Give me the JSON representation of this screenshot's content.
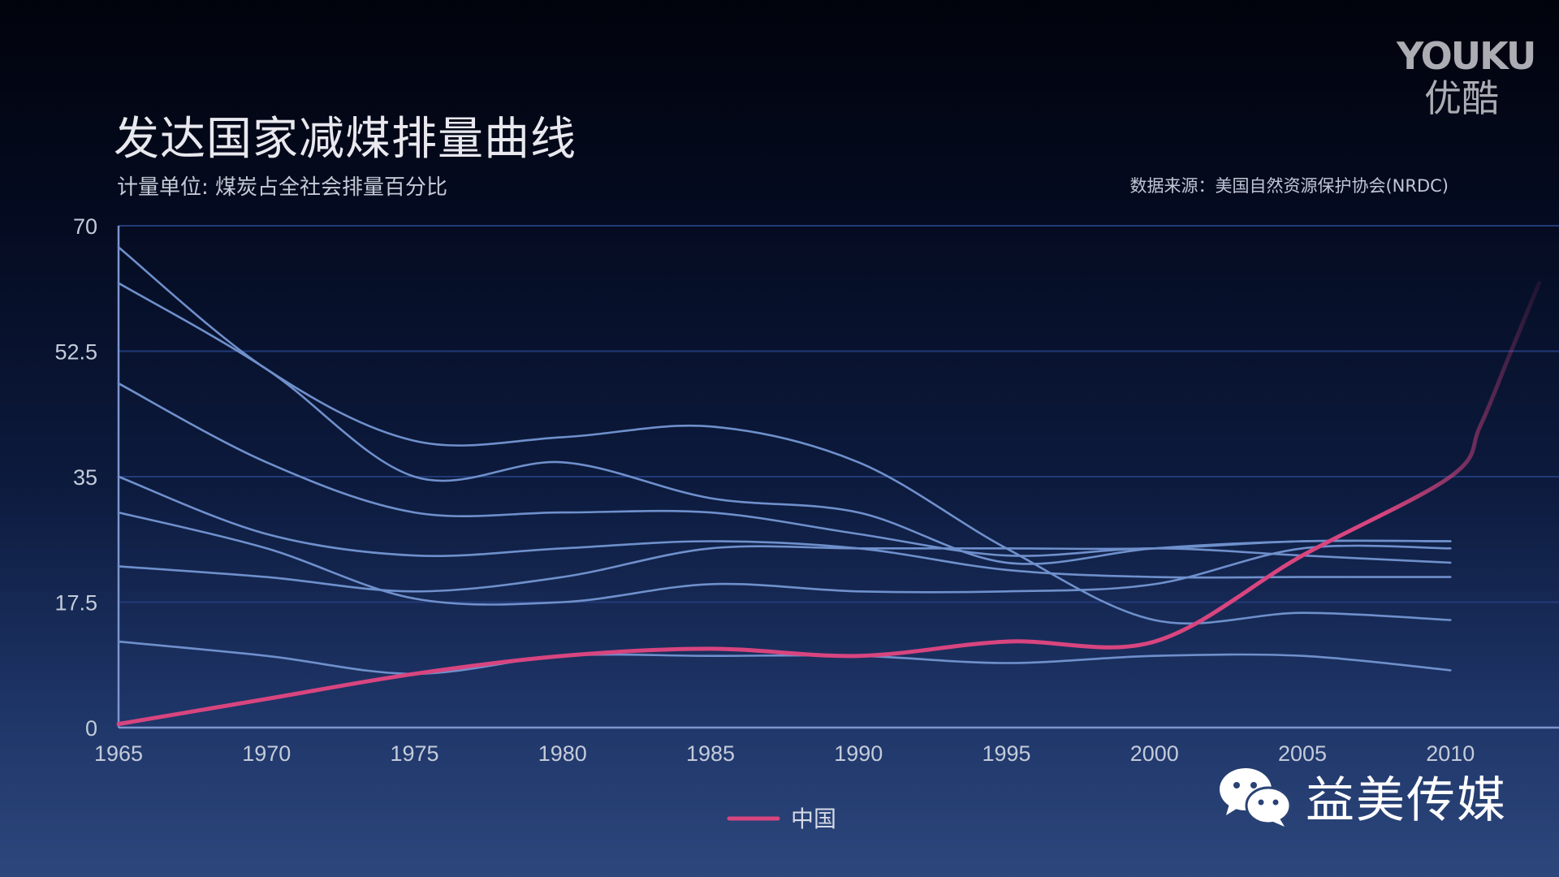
{
  "title": "发达国家减煤排量曲线",
  "subtitle": "计量单位: 煤炭占全社会排量百分比",
  "source": "数据来源：美国自然资源保护协会(NRDC)",
  "logo": {
    "top": "YOUKU",
    "bottom": "优酷"
  },
  "watermark": {
    "text": "益美传媒",
    "icon": "wechat-icon"
  },
  "colors": {
    "series": "#6f90cc",
    "china": "#d8457f",
    "axis": "#7d96cf",
    "grid": "#223a78"
  },
  "chart_data": {
    "type": "line",
    "title": "发达国家减煤排量曲线",
    "ylabel": "计量单位: 煤炭占全社会排量百分比",
    "xlim": [
      1965,
      2013
    ],
    "ylim": [
      0,
      70
    ],
    "x_ticks": [
      "1965",
      "1970",
      "1975",
      "1980",
      "1985",
      "1990",
      "1995",
      "2000",
      "2005",
      "2010"
    ],
    "y_ticks": [
      "0",
      "17.5",
      "35",
      "52.5",
      "70"
    ],
    "grid": true,
    "legend": "bottom-center",
    "x": [
      1965,
      1970,
      1975,
      1980,
      1985,
      1990,
      1995,
      2000,
      2005,
      2010
    ],
    "series": [
      {
        "values": [
          67,
          50,
          40,
          40.5,
          42,
          37,
          25,
          15,
          16,
          15
        ]
      },
      {
        "values": [
          62,
          50,
          35,
          37,
          32,
          30,
          23,
          25,
          26,
          26
        ]
      },
      {
        "values": [
          48,
          37,
          30,
          30,
          30,
          27,
          24,
          25,
          24,
          23
        ]
      },
      {
        "values": [
          35,
          27,
          24,
          25,
          26,
          25,
          22,
          21,
          21,
          21
        ]
      },
      {
        "values": [
          30,
          25,
          18,
          17.5,
          20,
          19,
          19,
          20,
          25,
          25
        ]
      },
      {
        "values": [
          22.5,
          21,
          19,
          21,
          25,
          25,
          25,
          25,
          26,
          26
        ]
      },
      {
        "values": [
          12,
          10,
          7.5,
          10,
          10,
          10,
          9,
          10,
          10,
          8
        ]
      },
      {
        "name": "中国",
        "values": [
          0.5,
          4,
          7.5,
          10,
          11,
          10,
          12,
          12,
          24,
          35
        ]
      }
    ],
    "china_extension": {
      "x": [
        2011,
        2012,
        2013
      ],
      "values": [
        42,
        52,
        62
      ]
    }
  }
}
